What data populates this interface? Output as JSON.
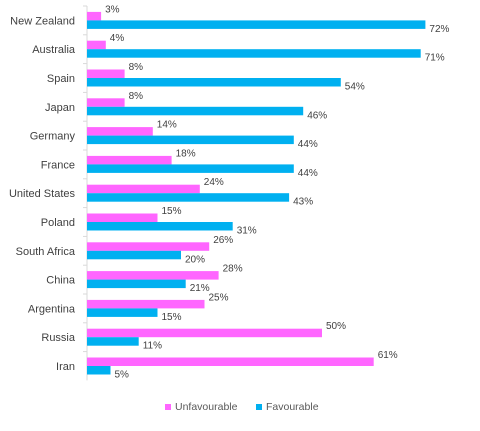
{
  "chart_data": {
    "type": "bar",
    "orientation": "horizontal",
    "categories": [
      "New Zealand",
      "Australia",
      "Spain",
      "Japan",
      "Germany",
      "France",
      "United States",
      "Poland",
      "South Africa",
      "China",
      "Argentina",
      "Russia",
      "Iran"
    ],
    "series": [
      {
        "name": "Unfavourable",
        "color": "#ff66ff",
        "values": [
          3,
          4,
          8,
          8,
          14,
          18,
          24,
          15,
          26,
          28,
          25,
          50,
          61
        ],
        "labels": [
          "3%",
          "4%",
          "8%",
          "8%",
          "14%",
          "18%",
          "24%",
          "15%",
          "26%",
          "28%",
          "25%",
          "50%",
          "61%"
        ]
      },
      {
        "name": "Favourable",
        "color": "#00b0f0",
        "values": [
          72,
          71,
          54,
          46,
          44,
          44,
          43,
          31,
          20,
          21,
          15,
          11,
          5
        ],
        "labels": [
          "72%",
          "71%",
          "54%",
          "46%",
          "44%",
          "44%",
          "43%",
          "31%",
          "20%",
          "21%",
          "15%",
          "11%",
          "5%"
        ]
      }
    ],
    "xlim": [
      0,
      80
    ],
    "value_unit": "%",
    "grid": false,
    "legend_position": "bottom"
  }
}
